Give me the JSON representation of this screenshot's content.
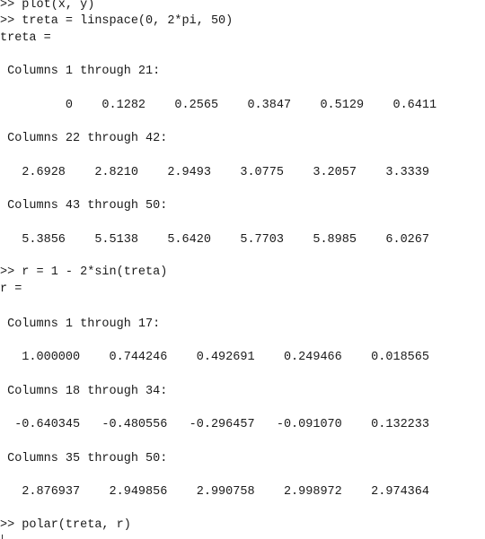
{
  "console": {
    "line_01": ">> plot(x, y)",
    "line_02": ">> treta = linspace(0, 2*pi, 50)",
    "line_03": "treta =",
    "line_04": " Columns 1 through 21:",
    "line_05": "         0    0.1282    0.2565    0.3847    0.5129    0.6411",
    "line_06": " Columns 22 through 42:",
    "line_07": "   2.6928    2.8210    2.9493    3.0775    3.2057    3.3339",
    "line_08": " Columns 43 through 50:",
    "line_09": "   5.3856    5.5138    5.6420    5.7703    5.8985    6.0267",
    "line_10": ">> r = 1 - 2*sin(treta)",
    "line_11": "r =",
    "line_12": " Columns 1 through 17:",
    "line_13": "   1.000000    0.744246    0.492691    0.249466    0.018565",
    "line_14": " Columns 18 through 34:",
    "line_15": "  -0.640345   -0.480556   -0.296457   -0.091070    0.132233",
    "line_16": " Columns 35 through 50:",
    "line_17": "   2.876937    2.949856    2.990758    2.998972    2.974364",
    "line_18": ">> polar(treta, r)"
  }
}
